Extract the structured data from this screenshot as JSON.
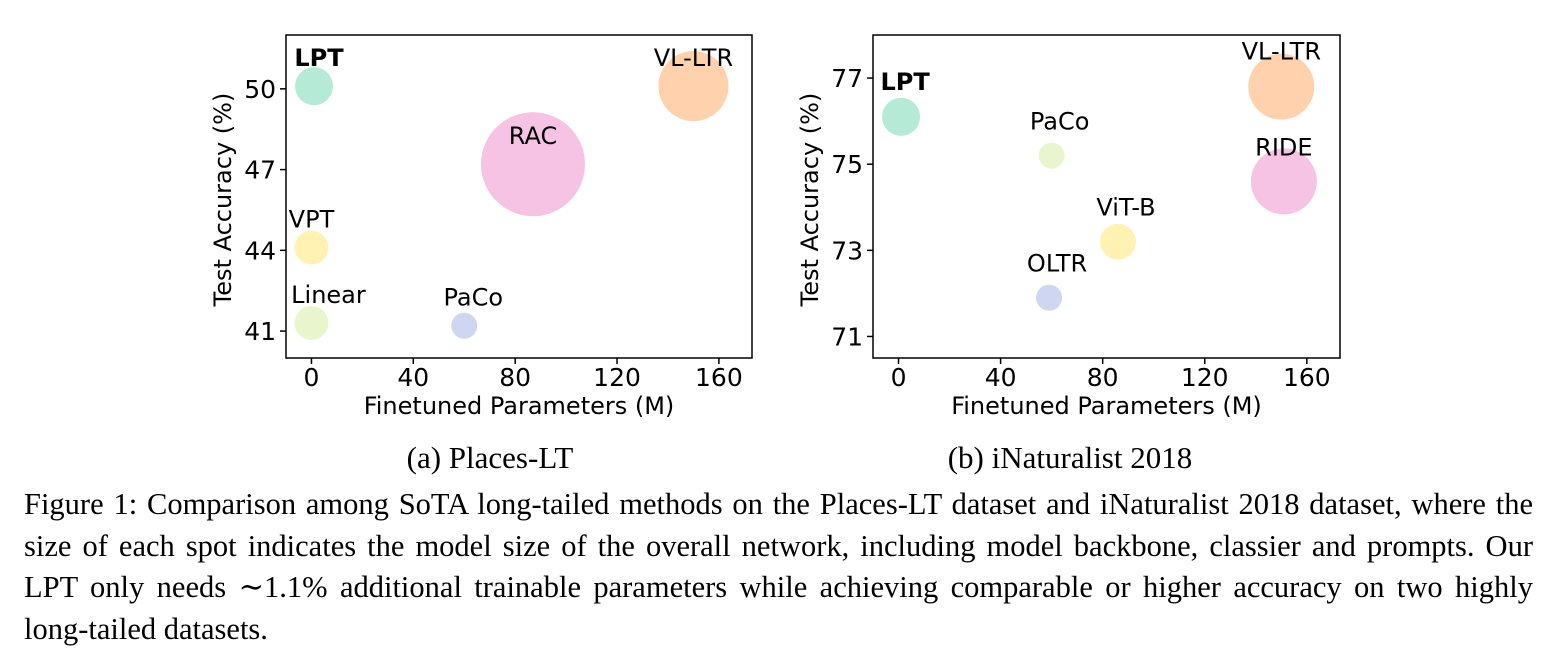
{
  "chart_data": [
    {
      "type": "scatter",
      "subcaption": "(a) Places-LT",
      "xlabel": "Finetuned Parameters (M)",
      "ylabel": "Test Accuracy (%)",
      "xlim": [
        -10,
        173
      ],
      "ylim": [
        40,
        52
      ],
      "xticks": [
        0,
        40,
        80,
        120,
        160
      ],
      "yticks": [
        41,
        44,
        47,
        50
      ],
      "points": [
        {
          "label": "LPT",
          "bold": true,
          "x": 1,
          "y": 50.1,
          "color": "#a8e6cf"
        },
        {
          "label": "VL-LTR",
          "bold": false,
          "x": 150,
          "y": 50.1,
          "color": "#ffc99e"
        },
        {
          "label": "RAC",
          "bold": false,
          "x": 87,
          "y": 47.2,
          "color": "#f5b8e0"
        },
        {
          "label": "VPT",
          "bold": false,
          "x": 0,
          "y": 44.1,
          "color": "#fff0a6"
        },
        {
          "label": "Linear",
          "bold": false,
          "x": 0,
          "y": 41.3,
          "color": "#e5f5c4"
        },
        {
          "label": "PaCo",
          "bold": false,
          "x": 60,
          "y": 41.2,
          "color": "#c7cff0"
        }
      ]
    },
    {
      "type": "scatter",
      "subcaption": "(b) iNaturalist 2018",
      "xlabel": "Finetuned Parameters (M)",
      "ylabel": "Test Accuracy (%)",
      "xlim": [
        -10,
        173
      ],
      "ylim": [
        70.5,
        78
      ],
      "xticks": [
        0,
        40,
        80,
        120,
        160
      ],
      "yticks": [
        71,
        73,
        75,
        77
      ],
      "points": [
        {
          "label": "LPT",
          "bold": true,
          "x": 1,
          "y": 76.1,
          "color": "#a8e6cf"
        },
        {
          "label": "VL-LTR",
          "bold": false,
          "x": 150,
          "y": 76.8,
          "color": "#ffc99e"
        },
        {
          "label": "PaCo",
          "bold": false,
          "x": 60,
          "y": 75.2,
          "color": "#e5f5c4"
        },
        {
          "label": "RIDE",
          "bold": false,
          "x": 151,
          "y": 74.6,
          "color": "#f5b8e0"
        },
        {
          "label": "ViT-B",
          "bold": false,
          "x": 86,
          "y": 73.2,
          "color": "#fff0a6"
        },
        {
          "label": "OLTR",
          "bold": false,
          "x": 59,
          "y": 71.9,
          "color": "#c7cff0"
        }
      ]
    }
  ],
  "caption": "Figure 1: Comparison among SoTA long-tailed methods on the Places-LT dataset and iNaturalist 2018 dataset, where the size of each spot indicates the model size of the overall network, including model backbone, classier and prompts. Our LPT only needs ∼1.1% additional trainable parameters while achieving comparable or higher accuracy on two highly long-tailed datasets."
}
